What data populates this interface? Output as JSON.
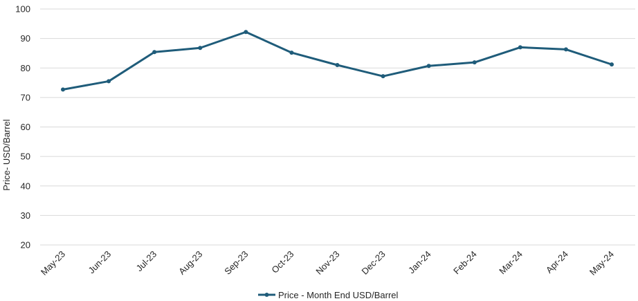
{
  "chart_data": {
    "type": "line",
    "categories": [
      "May-23",
      "Jun-23",
      "Jul-23",
      "Aug-23",
      "Sep-23",
      "Oct-23",
      "Nov-23",
      "Dec-23",
      "Jan-24",
      "Feb-24",
      "Mar-24",
      "Apr-24",
      "May-24"
    ],
    "series": [
      {
        "name": "Price - Month End USD/Barrel",
        "color": "#1f5c7a",
        "values": [
          72.7,
          75.5,
          85.4,
          86.8,
          92.2,
          85.2,
          81.0,
          77.2,
          80.7,
          81.9,
          87.0,
          86.3,
          81.2
        ]
      }
    ],
    "ylabel": "Price- USD/Barrel",
    "ylim": [
      20,
      100
    ],
    "yticks": [
      20,
      30,
      40,
      50,
      60,
      70,
      80,
      90,
      100
    ],
    "grid": true,
    "legend_position": "bottom"
  }
}
